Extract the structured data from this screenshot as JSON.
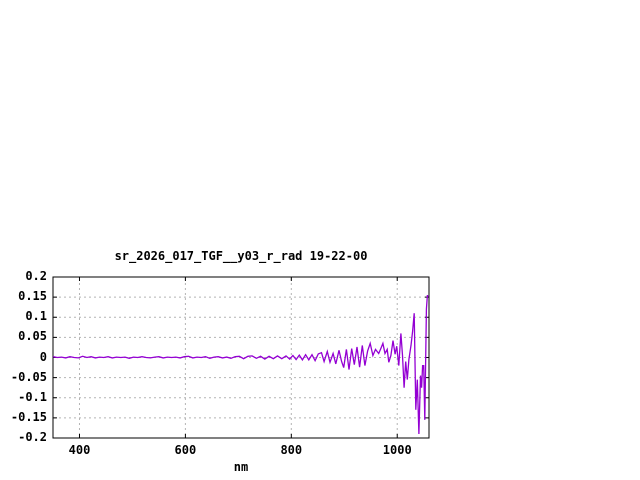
{
  "page": {
    "background_color": "#ffffff",
    "text_color": "#000000"
  },
  "chart_data": {
    "type": "line",
    "title": "sr_2026_017_TGF__y03_r_rad 19-22-00",
    "xlabel": "nm",
    "ylabel": "",
    "xlim": [
      350,
      1060
    ],
    "ylim": [
      -0.2,
      0.2
    ],
    "xticks": [
      400,
      600,
      800,
      1000
    ],
    "xtick_labels": [
      "400",
      "600",
      "800",
      "1000"
    ],
    "yticks": [
      0.2,
      0.15,
      0.1,
      0.05,
      0,
      -0.05,
      -0.1,
      -0.15,
      -0.2
    ],
    "ytick_labels": [
      "0.2",
      "0.15",
      "0.1",
      "0.05",
      "0",
      "-0.05",
      "-0.1",
      "-0.15",
      "-0.2"
    ],
    "grid": true,
    "grid_style": "dashed-gray",
    "legend": "none",
    "line_color": "#9400d3",
    "border_color": "#000000",
    "grid_color": "#b4b4b4",
    "series": [
      {
        "name": "sr_2026_017_TGF__y03_r_rad",
        "points": [
          [
            350,
            0.002
          ],
          [
            358,
            0
          ],
          [
            366,
            0.001
          ],
          [
            374,
            -0.001
          ],
          [
            382,
            0.002
          ],
          [
            390,
            0
          ],
          [
            398,
            -0.001
          ],
          [
            406,
            0.003
          ],
          [
            414,
            0
          ],
          [
            422,
            0.002
          ],
          [
            430,
            -0.001
          ],
          [
            438,
            0.001
          ],
          [
            446,
            0
          ],
          [
            454,
            0.002
          ],
          [
            462,
            -0.001
          ],
          [
            470,
            0.001
          ],
          [
            478,
            0
          ],
          [
            486,
            0.001
          ],
          [
            494,
            -0.002
          ],
          [
            502,
            0.001
          ],
          [
            510,
            0
          ],
          [
            518,
            0.002
          ],
          [
            526,
            0
          ],
          [
            534,
            -0.001
          ],
          [
            542,
            0.001
          ],
          [
            550,
            0.002
          ],
          [
            558,
            -0.001
          ],
          [
            566,
            0.001
          ],
          [
            574,
            0
          ],
          [
            582,
            0.001
          ],
          [
            590,
            -0.001
          ],
          [
            598,
            0.002
          ],
          [
            606,
            0.003
          ],
          [
            614,
            -0.001
          ],
          [
            622,
            0.001
          ],
          [
            630,
            0
          ],
          [
            638,
            0.002
          ],
          [
            646,
            -0.002
          ],
          [
            654,
            0.001
          ],
          [
            662,
            0.002
          ],
          [
            670,
            -0.001
          ],
          [
            678,
            0.001
          ],
          [
            686,
            -0.002
          ],
          [
            694,
            0.002
          ],
          [
            702,
            0.003
          ],
          [
            710,
            -0.003
          ],
          [
            718,
            0.003
          ],
          [
            726,
            0.004
          ],
          [
            734,
            -0.002
          ],
          [
            742,
            0.003
          ],
          [
            750,
            -0.004
          ],
          [
            758,
            0.003
          ],
          [
            766,
            -0.003
          ],
          [
            774,
            0.004
          ],
          [
            782,
            -0.003
          ],
          [
            790,
            0.004
          ],
          [
            797,
            -0.004
          ],
          [
            803,
            0.005
          ],
          [
            809,
            -0.005
          ],
          [
            815,
            0.006
          ],
          [
            821,
            -0.006
          ],
          [
            827,
            0.007
          ],
          [
            833,
            -0.006
          ],
          [
            839,
            0.007
          ],
          [
            845,
            -0.008
          ],
          [
            851,
            0.009
          ],
          [
            857,
            0.012
          ],
          [
            862,
            -0.01
          ],
          [
            868,
            0.015
          ],
          [
            873,
            -0.012
          ],
          [
            879,
            0.01
          ],
          [
            884,
            -0.016
          ],
          [
            890,
            0.018
          ],
          [
            895,
            -0.01
          ],
          [
            899,
            -0.025
          ],
          [
            904,
            0.02
          ],
          [
            909,
            -0.03
          ],
          [
            914,
            0.022
          ],
          [
            919,
            -0.018
          ],
          [
            924,
            0.026
          ],
          [
            929,
            -0.024
          ],
          [
            934,
            0.03
          ],
          [
            939,
            -0.02
          ],
          [
            944,
            0.016
          ],
          [
            949,
            0.035
          ],
          [
            954,
            0.005
          ],
          [
            959,
            0.02
          ],
          [
            965,
            0.01
          ],
          [
            969,
            0.022
          ],
          [
            973,
            0.035
          ],
          [
            977,
            0.01
          ],
          [
            981,
            0.02
          ],
          [
            984,
            -0.012
          ],
          [
            988,
            0.005
          ],
          [
            992,
            0.042
          ],
          [
            996,
            0.008
          ],
          [
            999,
            0.028
          ],
          [
            1003,
            -0.02
          ],
          [
            1007,
            0.06
          ],
          [
            1010,
            0.005
          ],
          [
            1013,
            -0.075
          ],
          [
            1016,
            -0.01
          ],
          [
            1019,
            -0.055
          ],
          [
            1022,
            -0.005
          ],
          [
            1026,
            0.03
          ],
          [
            1029,
            0.065
          ],
          [
            1032,
            0.11
          ],
          [
            1035,
            -0.13
          ],
          [
            1038,
            -0.055
          ],
          [
            1041,
            -0.19
          ],
          [
            1044,
            -0.045
          ],
          [
            1046,
            -0.075
          ],
          [
            1048,
            -0.02
          ],
          [
            1050,
            -0.02
          ],
          [
            1052,
            -0.155
          ],
          [
            1055,
            0.12
          ],
          [
            1057,
            0.155
          ],
          [
            1058,
            0.15
          ]
        ]
      }
    ]
  }
}
